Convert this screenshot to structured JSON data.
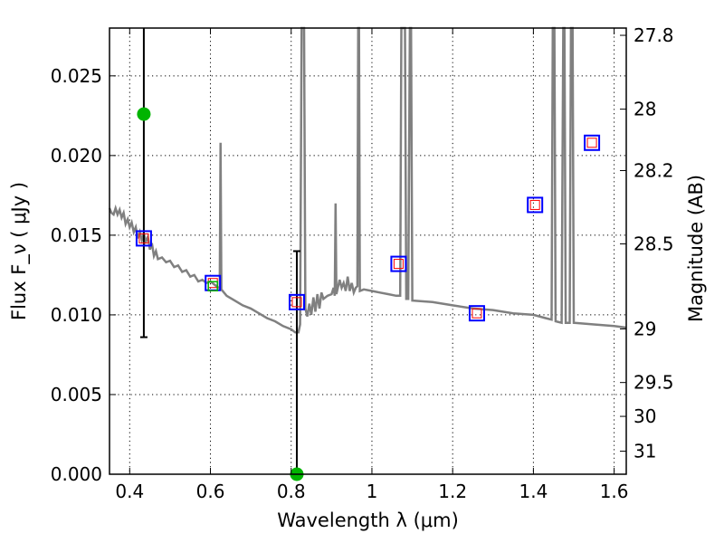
{
  "chart_data": {
    "type": "line",
    "xlabel": "Wavelength  λ (μm)",
    "ylabel": "Flux  F_ν  ( μJy )",
    "y2label": "Magnitude (AB)",
    "xlim": [
      0.35,
      1.63
    ],
    "ylim": [
      0,
      0.028
    ],
    "grid": true,
    "x_ticks": [
      0.4,
      0.6,
      0.8,
      1.0,
      1.2,
      1.4,
      1.6
    ],
    "x_tick_labels": [
      "0.4",
      "0.6",
      "0.8",
      "1",
      "1.2",
      "1.4",
      "1.6"
    ],
    "y_ticks": [
      0.0,
      0.005,
      0.01,
      0.015,
      0.02,
      0.025
    ],
    "y_tick_labels": [
      "0.000",
      "0.005",
      "0.010",
      "0.015",
      "0.020",
      "0.025"
    ],
    "mag_ticks": [
      27.8,
      28,
      28.2,
      28.5,
      29,
      29.5,
      30,
      31
    ],
    "mag_tick_labels": [
      "27.8",
      "28",
      "28.2",
      "28.5",
      "29",
      "29.5",
      "30",
      "31"
    ],
    "colors": {
      "spectrum": "#808080",
      "observed": "#00b400",
      "errorbar": "#000000",
      "model_box": "#0000ff",
      "model_inner": "#ff0000"
    },
    "spectrum": [
      [
        0.35,
        0.0167
      ],
      [
        0.355,
        0.0164
      ],
      [
        0.36,
        0.0163
      ],
      [
        0.365,
        0.0167
      ],
      [
        0.37,
        0.0163
      ],
      [
        0.375,
        0.0166
      ],
      [
        0.38,
        0.0161
      ],
      [
        0.385,
        0.0164
      ],
      [
        0.39,
        0.0157
      ],
      [
        0.395,
        0.016
      ],
      [
        0.4,
        0.0155
      ],
      [
        0.405,
        0.0158
      ],
      [
        0.41,
        0.0152
      ],
      [
        0.415,
        0.0155
      ],
      [
        0.42,
        0.0148
      ],
      [
        0.425,
        0.0152
      ],
      [
        0.43,
        0.0147
      ],
      [
        0.435,
        0.0151
      ],
      [
        0.44,
        0.0146
      ],
      [
        0.445,
        0.0149
      ],
      [
        0.45,
        0.0141
      ],
      [
        0.455,
        0.0145
      ],
      [
        0.46,
        0.0137
      ],
      [
        0.465,
        0.014
      ],
      [
        0.47,
        0.0135
      ],
      [
        0.48,
        0.0136
      ],
      [
        0.49,
        0.0133
      ],
      [
        0.5,
        0.0134
      ],
      [
        0.51,
        0.013
      ],
      [
        0.52,
        0.0131
      ],
      [
        0.53,
        0.0127
      ],
      [
        0.54,
        0.0128
      ],
      [
        0.55,
        0.0124
      ],
      [
        0.56,
        0.0125
      ],
      [
        0.57,
        0.0121
      ],
      [
        0.58,
        0.0122
      ],
      [
        0.59,
        0.012
      ],
      [
        0.6,
        0.0121
      ],
      [
        0.61,
        0.0119
      ],
      [
        0.62,
        0.0117
      ],
      [
        0.623,
        0.0117
      ],
      [
        0.625,
        0.0208
      ],
      [
        0.627,
        0.0116
      ],
      [
        0.64,
        0.0112
      ],
      [
        0.66,
        0.0109
      ],
      [
        0.68,
        0.0106
      ],
      [
        0.7,
        0.0104
      ],
      [
        0.72,
        0.0101
      ],
      [
        0.74,
        0.0098
      ],
      [
        0.76,
        0.0096
      ],
      [
        0.78,
        0.0093
      ],
      [
        0.8,
        0.0091
      ],
      [
        0.81,
        0.0089
      ],
      [
        0.818,
        0.0089
      ],
      [
        0.822,
        0.0094
      ],
      [
        0.826,
        0.028
      ],
      [
        0.832,
        0.028
      ],
      [
        0.835,
        0.0104
      ],
      [
        0.84,
        0.0099
      ],
      [
        0.845,
        0.0107
      ],
      [
        0.85,
        0.01
      ],
      [
        0.855,
        0.0111
      ],
      [
        0.86,
        0.0102
      ],
      [
        0.865,
        0.0113
      ],
      [
        0.87,
        0.0104
      ],
      [
        0.875,
        0.0114
      ],
      [
        0.88,
        0.011
      ],
      [
        0.89,
        0.0112
      ],
      [
        0.9,
        0.0113
      ],
      [
        0.905,
        0.0117
      ],
      [
        0.908,
        0.0112
      ],
      [
        0.91,
        0.017
      ],
      [
        0.912,
        0.0113
      ],
      [
        0.92,
        0.0122
      ],
      [
        0.925,
        0.0117
      ],
      [
        0.93,
        0.012
      ],
      [
        0.935,
        0.0115
      ],
      [
        0.94,
        0.0124
      ],
      [
        0.945,
        0.0115
      ],
      [
        0.95,
        0.012
      ],
      [
        0.955,
        0.0114
      ],
      [
        0.96,
        0.0117
      ],
      [
        0.964,
        0.0118
      ],
      [
        0.966,
        0.028
      ],
      [
        0.968,
        0.028
      ],
      [
        0.97,
        0.0115
      ],
      [
        0.98,
        0.0116
      ],
      [
        1.0,
        0.0115
      ],
      [
        1.02,
        0.0114
      ],
      [
        1.04,
        0.0113
      ],
      [
        1.06,
        0.0112
      ],
      [
        1.07,
        0.0112
      ],
      [
        1.073,
        0.028
      ],
      [
        1.082,
        0.028
      ],
      [
        1.085,
        0.011
      ],
      [
        1.09,
        0.011
      ],
      [
        1.094,
        0.028
      ],
      [
        1.097,
        0.028
      ],
      [
        1.1,
        0.0109
      ],
      [
        1.15,
        0.0108
      ],
      [
        1.2,
        0.0106
      ],
      [
        1.25,
        0.0104
      ],
      [
        1.3,
        0.0103
      ],
      [
        1.35,
        0.0101
      ],
      [
        1.4,
        0.01
      ],
      [
        1.43,
        0.0098
      ],
      [
        1.445,
        0.0097
      ],
      [
        1.448,
        0.028
      ],
      [
        1.452,
        0.028
      ],
      [
        1.455,
        0.0096
      ],
      [
        1.47,
        0.0095
      ],
      [
        1.474,
        0.028
      ],
      [
        1.477,
        0.028
      ],
      [
        1.48,
        0.0095
      ],
      [
        1.49,
        0.0095
      ],
      [
        1.493,
        0.028
      ],
      [
        1.497,
        0.028
      ],
      [
        1.5,
        0.0095
      ],
      [
        1.55,
        0.0094
      ],
      [
        1.6,
        0.0093
      ],
      [
        1.63,
        0.0092
      ]
    ],
    "model_points": [
      {
        "x": 0.435,
        "y": 0.0148
      },
      {
        "x": 0.606,
        "y": 0.012
      },
      {
        "x": 0.814,
        "y": 0.0108
      },
      {
        "x": 1.066,
        "y": 0.0132
      },
      {
        "x": 1.26,
        "y": 0.0101
      },
      {
        "x": 1.404,
        "y": 0.0169
      },
      {
        "x": 1.545,
        "y": 0.0208
      }
    ],
    "observed": [
      {
        "x": 0.435,
        "y": 0.0226,
        "ylow": 0.0086,
        "yhigh": 0.028
      },
      {
        "x": 0.606,
        "y": 0.0118
      },
      {
        "x": 0.814,
        "y": 0.0,
        "ylow": 0.0,
        "yhigh": 0.014
      }
    ]
  }
}
